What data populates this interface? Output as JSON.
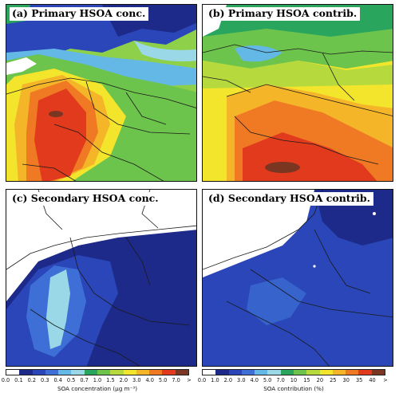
{
  "panels": [
    {
      "title": "(a) Primary HSOA conc."
    },
    {
      "title": "(b) Primary HSOA contrib."
    },
    {
      "title": "(c) Secondary HSOA conc."
    },
    {
      "title": "(d) Secondary HSOA contrib."
    }
  ],
  "colorbars": [
    {
      "label": "SOA concentration (μg m⁻³)",
      "ticks": [
        "0.0",
        "0.1",
        "0.2",
        "0.3",
        "0.4",
        "0.5",
        "0.7",
        "1.0",
        "1.5",
        "2.0",
        "3.0",
        "4.0",
        "5.0",
        "7.0",
        ">"
      ]
    },
    {
      "label": "SOA contribution (%)",
      "ticks": [
        "0.0",
        "1.0",
        "2.0",
        "3.0",
        "4.0",
        "5.0",
        "7.0",
        "10",
        "15",
        "20",
        "25",
        "30",
        "35",
        "40",
        ">"
      ]
    }
  ],
  "palette": [
    "#ffffff",
    "#1d2a8a",
    "#2a46b8",
    "#3d6fd6",
    "#63b8e6",
    "#9ad8e8",
    "#2aa55e",
    "#6dc44c",
    "#b6d93e",
    "#f2e52c",
    "#f5b528",
    "#ef7a23",
    "#e23a1d",
    "#7a3620"
  ],
  "map_colors": {
    "land_blank": "#ffffff",
    "border": "#1a1a1a"
  }
}
